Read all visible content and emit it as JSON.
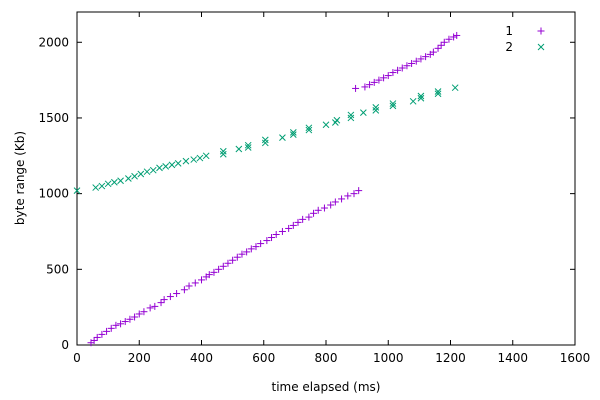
{
  "chart_data": {
    "type": "scatter",
    "xlabel": "time elapsed (ms)",
    "ylabel": "byte range (Kb)",
    "xlim": [
      0,
      1600
    ],
    "ylim": [
      0,
      2200
    ],
    "xticks": [
      0,
      200,
      400,
      600,
      800,
      1000,
      1200,
      1400,
      1600
    ],
    "yticks": [
      0,
      500,
      1000,
      1500,
      2000
    ],
    "grid": false,
    "legend_position": "top-right",
    "series": [
      {
        "name": "1",
        "marker": "plus",
        "color": "#9400d3",
        "points": [
          [
            45,
            15
          ],
          [
            55,
            30
          ],
          [
            65,
            50
          ],
          [
            80,
            70
          ],
          [
            95,
            90
          ],
          [
            110,
            110
          ],
          [
            125,
            130
          ],
          [
            140,
            140
          ],
          [
            155,
            155
          ],
          [
            170,
            170
          ],
          [
            185,
            185
          ],
          [
            200,
            205
          ],
          [
            215,
            220
          ],
          [
            235,
            245
          ],
          [
            250,
            255
          ],
          [
            270,
            280
          ],
          [
            280,
            300
          ],
          [
            300,
            320
          ],
          [
            320,
            340
          ],
          [
            345,
            365
          ],
          [
            360,
            390
          ],
          [
            380,
            410
          ],
          [
            400,
            430
          ],
          [
            415,
            450
          ],
          [
            425,
            465
          ],
          [
            440,
            480
          ],
          [
            455,
            500
          ],
          [
            470,
            520
          ],
          [
            485,
            540
          ],
          [
            500,
            560
          ],
          [
            515,
            580
          ],
          [
            530,
            600
          ],
          [
            545,
            615
          ],
          [
            560,
            635
          ],
          [
            575,
            650
          ],
          [
            590,
            670
          ],
          [
            610,
            690
          ],
          [
            625,
            710
          ],
          [
            640,
            730
          ],
          [
            660,
            750
          ],
          [
            680,
            770
          ],
          [
            695,
            790
          ],
          [
            710,
            810
          ],
          [
            725,
            830
          ],
          [
            745,
            845
          ],
          [
            760,
            870
          ],
          [
            775,
            890
          ],
          [
            795,
            905
          ],
          [
            815,
            925
          ],
          [
            830,
            945
          ],
          [
            850,
            965
          ],
          [
            870,
            985
          ],
          [
            890,
            1000
          ],
          [
            905,
            1020
          ],
          [
            895,
            1695
          ],
          [
            925,
            1705
          ],
          [
            940,
            1720
          ],
          [
            955,
            1735
          ],
          [
            970,
            1750
          ],
          [
            985,
            1765
          ],
          [
            1000,
            1780
          ],
          [
            1015,
            1800
          ],
          [
            1030,
            1815
          ],
          [
            1045,
            1830
          ],
          [
            1060,
            1845
          ],
          [
            1075,
            1860
          ],
          [
            1090,
            1875
          ],
          [
            1105,
            1890
          ],
          [
            1120,
            1905
          ],
          [
            1135,
            1920
          ],
          [
            1145,
            1935
          ],
          [
            1160,
            1960
          ],
          [
            1170,
            1980
          ],
          [
            1180,
            2000
          ],
          [
            1195,
            2020
          ],
          [
            1210,
            2035
          ],
          [
            1220,
            2045
          ]
        ]
      },
      {
        "name": "2",
        "marker": "x",
        "color": "#009e73",
        "points": [
          [
            0,
            1020
          ],
          [
            60,
            1040
          ],
          [
            80,
            1050
          ],
          [
            100,
            1065
          ],
          [
            120,
            1075
          ],
          [
            140,
            1085
          ],
          [
            165,
            1100
          ],
          [
            185,
            1115
          ],
          [
            205,
            1130
          ],
          [
            225,
            1145
          ],
          [
            245,
            1155
          ],
          [
            265,
            1170
          ],
          [
            285,
            1180
          ],
          [
            305,
            1190
          ],
          [
            325,
            1200
          ],
          [
            350,
            1215
          ],
          [
            375,
            1225
          ],
          [
            395,
            1235
          ],
          [
            415,
            1250
          ],
          [
            470,
            1260
          ],
          [
            470,
            1280
          ],
          [
            520,
            1295
          ],
          [
            550,
            1305
          ],
          [
            550,
            1320
          ],
          [
            605,
            1335
          ],
          [
            605,
            1355
          ],
          [
            660,
            1370
          ],
          [
            695,
            1390
          ],
          [
            695,
            1405
          ],
          [
            745,
            1420
          ],
          [
            745,
            1435
          ],
          [
            800,
            1455
          ],
          [
            830,
            1470
          ],
          [
            835,
            1485
          ],
          [
            880,
            1500
          ],
          [
            880,
            1520
          ],
          [
            920,
            1535
          ],
          [
            960,
            1550
          ],
          [
            960,
            1570
          ],
          [
            1015,
            1580
          ],
          [
            1015,
            1595
          ],
          [
            1080,
            1610
          ],
          [
            1105,
            1630
          ],
          [
            1105,
            1645
          ],
          [
            1160,
            1660
          ],
          [
            1160,
            1675
          ],
          [
            1215,
            1700
          ]
        ]
      }
    ]
  }
}
